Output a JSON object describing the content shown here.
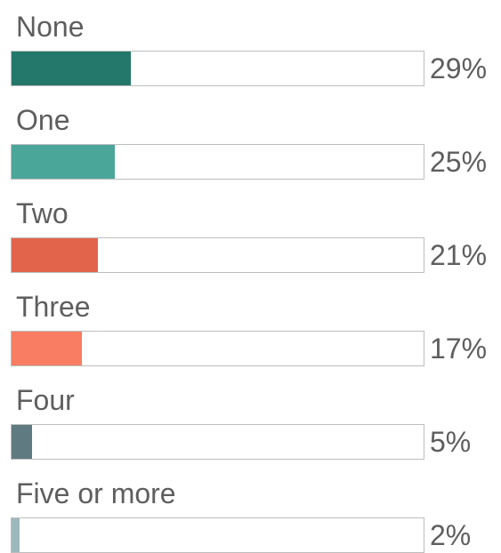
{
  "chart_data": {
    "type": "bar",
    "orientation": "horizontal",
    "categories": [
      "None",
      "One",
      "Two",
      "Three",
      "Four",
      "Five or more"
    ],
    "values": [
      29,
      25,
      21,
      17,
      5,
      2
    ],
    "value_labels": [
      "29%",
      "25%",
      "21%",
      "17%",
      "5%",
      "2%"
    ],
    "unit": "%",
    "xlim": [
      0,
      100
    ],
    "colors": [
      "#24786b",
      "#4ba69a",
      "#e2654b",
      "#f97d62",
      "#5f7b81",
      "#9db8bc"
    ],
    "grid": false,
    "legend": "none"
  }
}
